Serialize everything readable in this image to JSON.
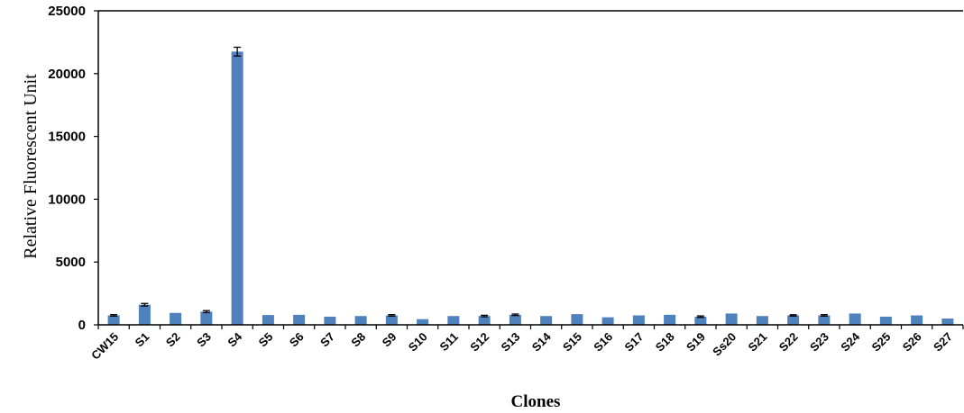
{
  "chart_data": {
    "type": "bar",
    "title": "",
    "xlabel": "Clones",
    "ylabel": "Relative Fluorescent Unit",
    "ylim": [
      0,
      25000
    ],
    "yticks": [
      0,
      5000,
      10000,
      15000,
      20000,
      25000
    ],
    "grid": false,
    "legend": "none",
    "bar_color": "#4f81bd",
    "categories": [
      "CW15",
      "S1",
      "S2",
      "S3",
      "S4",
      "S5",
      "S6",
      "S7",
      "S8",
      "S9",
      "S10",
      "S11",
      "S12",
      "S13",
      "S14",
      "S15",
      "S16",
      "S17",
      "S18",
      "S19",
      "Ss20",
      "S21",
      "S22",
      "S23",
      "S24",
      "S25",
      "S26",
      "S27"
    ],
    "values": [
      750,
      1600,
      950,
      1050,
      21750,
      780,
      800,
      650,
      700,
      750,
      450,
      700,
      700,
      800,
      700,
      850,
      600,
      750,
      800,
      650,
      900,
      700,
      750,
      750,
      900,
      650,
      750,
      500
    ],
    "errors": [
      60,
      100,
      0,
      80,
      350,
      0,
      0,
      0,
      0,
      60,
      0,
      0,
      60,
      60,
      0,
      0,
      0,
      0,
      0,
      60,
      0,
      0,
      50,
      60,
      0,
      0,
      0,
      0
    ]
  }
}
